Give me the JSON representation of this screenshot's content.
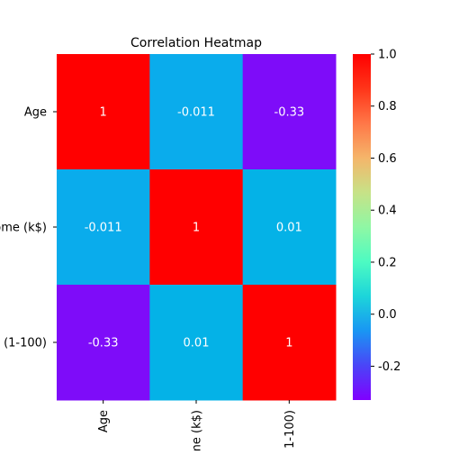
{
  "chart_data": {
    "type": "heatmap",
    "title": "Correlation Heatmap",
    "row_labels": [
      "Age",
      "ome (k$)",
      "(1-100)"
    ],
    "col_labels": [
      "Age",
      "me (k$)",
      "1-100)"
    ],
    "values": [
      [
        1,
        -0.011,
        -0.33
      ],
      [
        -0.011,
        1,
        0.01
      ],
      [
        -0.33,
        0.01,
        1
      ]
    ],
    "value_labels": [
      [
        "1",
        "-0.011",
        "-0.33"
      ],
      [
        "-0.011",
        "1",
        "0.01"
      ],
      [
        "-0.33",
        "0.01",
        "1"
      ]
    ],
    "colormap": "rainbow",
    "cell_colors": [
      [
        "#ff0000",
        "#0aacec",
        "#7e0cf9"
      ],
      [
        "#0aacec",
        "#ff0000",
        "#04b2e7"
      ],
      [
        "#7e0cf9",
        "#04b2e7",
        "#ff0000"
      ]
    ],
    "colorbar": {
      "range": [
        -0.33,
        1.0
      ],
      "ticks": [
        "-0.2",
        "0.0",
        "0.2",
        "0.4",
        "0.6",
        "0.8",
        "1.0"
      ],
      "tick_values": [
        -0.2,
        0.0,
        0.2,
        0.4,
        0.6,
        0.8,
        1.0
      ],
      "gradient": [
        "#8000ff",
        "#4a45f7",
        "#1996f3",
        "#1cd5da",
        "#4dfbc2",
        "#8ff7a4",
        "#c7e287",
        "#f5b56a",
        "#ff7747",
        "#ff3519",
        "#ff0000"
      ]
    },
    "annotation_color": "#ffffff",
    "grid": false
  }
}
